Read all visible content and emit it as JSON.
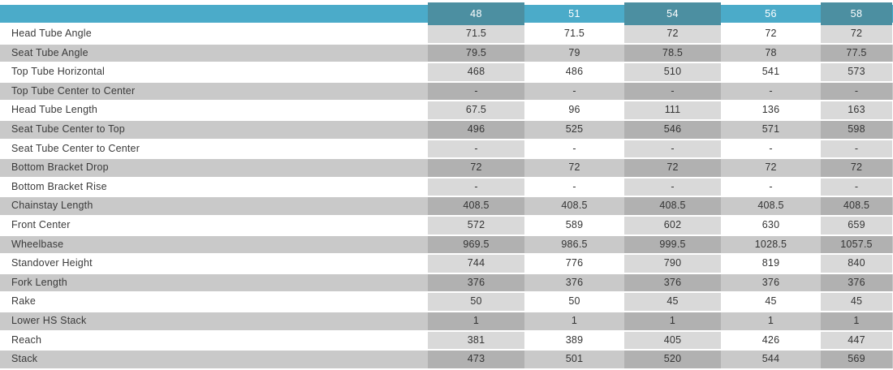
{
  "chart_data": {
    "type": "table",
    "title": "",
    "columns": [
      "48",
      "51",
      "54",
      "56",
      "58"
    ],
    "rows": [
      {
        "label": "Head Tube Angle",
        "values": [
          "71.5",
          "71.5",
          "72",
          "72",
          "72"
        ]
      },
      {
        "label": "Seat Tube Angle",
        "values": [
          "79.5",
          "79",
          "78.5",
          "78",
          "77.5"
        ]
      },
      {
        "label": "Top Tube Horizontal",
        "values": [
          "468",
          "486",
          "510",
          "541",
          "573"
        ]
      },
      {
        "label": "Top Tube Center to Center",
        "values": [
          "-",
          "-",
          "-",
          "-",
          "-"
        ]
      },
      {
        "label": "Head Tube Length",
        "values": [
          "67.5",
          "96",
          "111",
          "136",
          "163"
        ]
      },
      {
        "label": "Seat Tube Center to Top",
        "values": [
          "496",
          "525",
          "546",
          "571",
          "598"
        ]
      },
      {
        "label": "Seat Tube Center to Center",
        "values": [
          "-",
          "-",
          "-",
          "-",
          "-"
        ]
      },
      {
        "label": "Bottom Bracket Drop",
        "values": [
          "72",
          "72",
          "72",
          "72",
          "72"
        ]
      },
      {
        "label": "Bottom Bracket Rise",
        "values": [
          "-",
          "-",
          "-",
          "-",
          "-"
        ]
      },
      {
        "label": "Chainstay Length",
        "values": [
          "408.5",
          "408.5",
          "408.5",
          "408.5",
          "408.5"
        ]
      },
      {
        "label": "Front Center",
        "values": [
          "572",
          "589",
          "602",
          "630",
          "659"
        ]
      },
      {
        "label": "Wheelbase",
        "values": [
          "969.5",
          "986.5",
          "999.5",
          "1028.5",
          "1057.5"
        ]
      },
      {
        "label": "Standover Height",
        "values": [
          "744",
          "776",
          "790",
          "819",
          "840"
        ]
      },
      {
        "label": "Fork Length",
        "values": [
          "376",
          "376",
          "376",
          "376",
          "376"
        ]
      },
      {
        "label": "Rake",
        "values": [
          "50",
          "50",
          "45",
          "45",
          "45"
        ]
      },
      {
        "label": "Lower HS Stack",
        "values": [
          "1",
          "1",
          "1",
          "1",
          "1"
        ]
      },
      {
        "label": "Reach",
        "values": [
          "381",
          "389",
          "405",
          "426",
          "447"
        ]
      },
      {
        "label": "Stack",
        "values": [
          "473",
          "501",
          "520",
          "544",
          "569"
        ]
      }
    ],
    "colors": {
      "header_light_blue": "#4BABC9",
      "header_dark_teal": "#4C8FA1",
      "row_stripe_gray": "#C9C9C9",
      "column_overlay_light": "#D9D9D9",
      "column_overlay_dark": "#B1B1B1",
      "header_text": "#FFFFFF",
      "body_text": "#343434"
    }
  }
}
